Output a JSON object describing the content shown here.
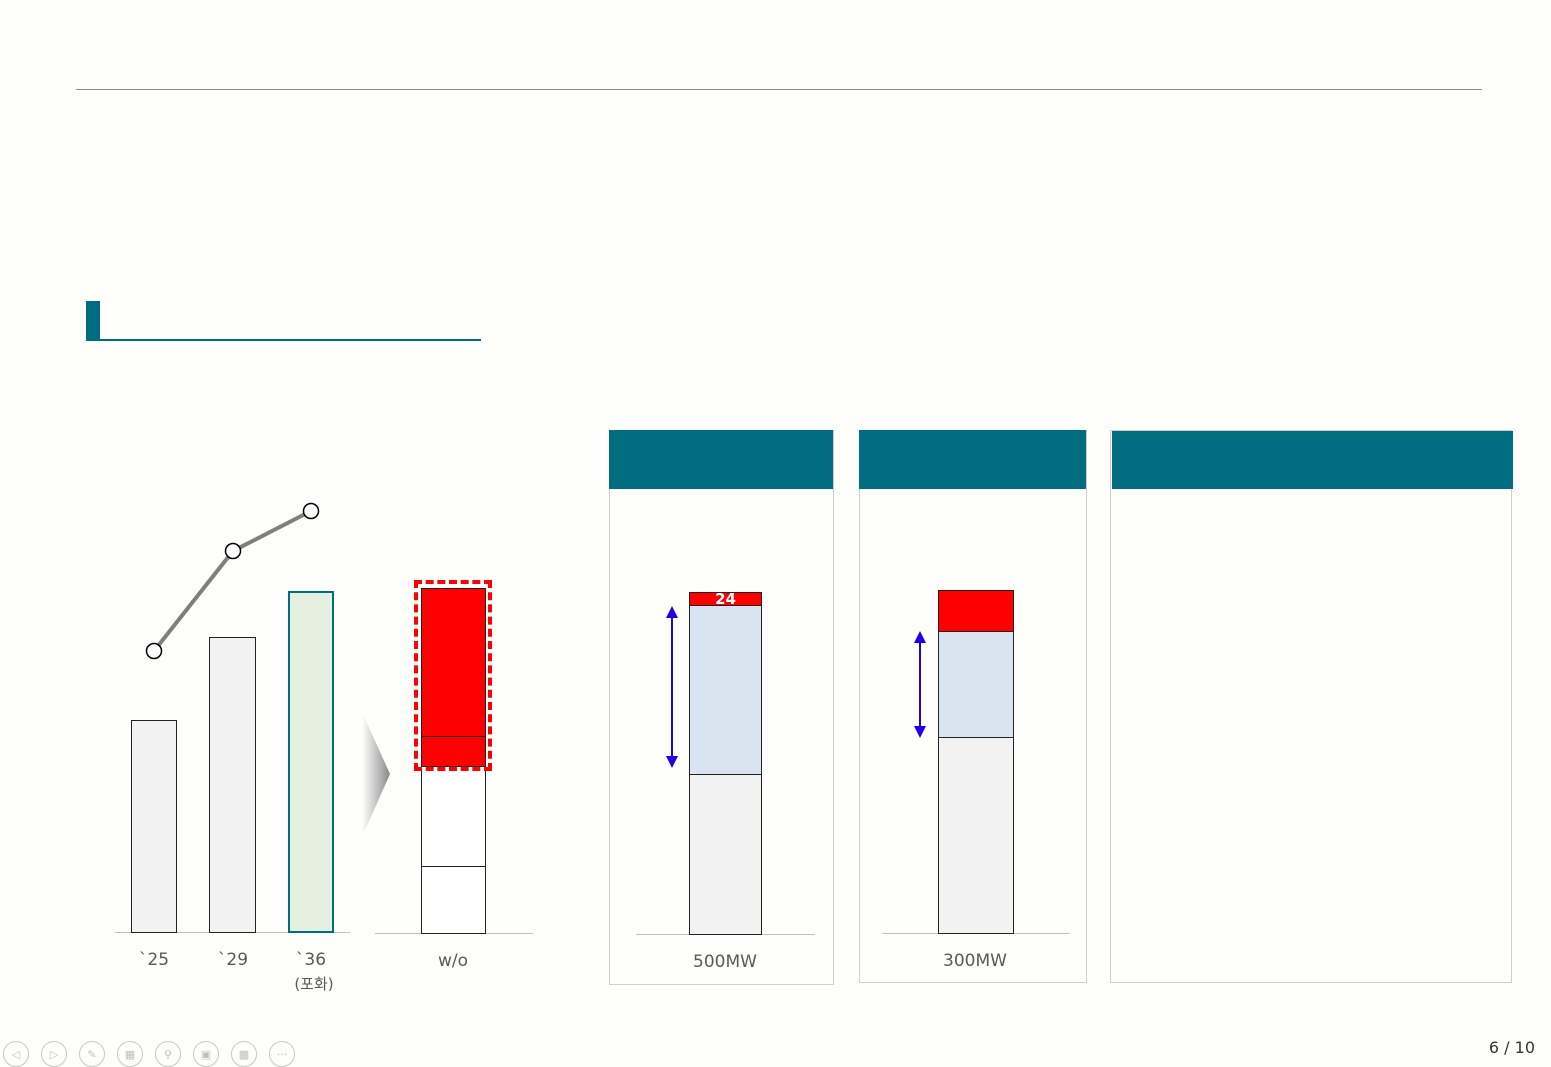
{
  "colors": {
    "teal": "#006c80",
    "red": "#ff0000",
    "light_blue": "#dae4f0",
    "light_gray": "#f2f2f2",
    "light_green": "#e3f0df",
    "arrow_blue": "#2200ee",
    "line_gray": "#7f7f7f"
  },
  "left_chart": {
    "categories": [
      "`25",
      "`29",
      "`36"
    ],
    "sub_label": "(포화)",
    "bar_values": [
      212,
      295,
      341
    ],
    "line_values": [
      280,
      380,
      420
    ]
  },
  "wo_chart": {
    "label": "w/o"
  },
  "panel1": {
    "label": "500MW",
    "top_value": "24"
  },
  "panel2": {
    "label": "300MW"
  },
  "footer": {
    "page": "6 / 10",
    "controls": [
      "prev-icon",
      "next-icon",
      "pen-icon",
      "slides-icon",
      "zoom-icon",
      "subtitle-icon",
      "camera-off-icon",
      "more-icon"
    ]
  },
  "chart_data": [
    {
      "type": "bar",
      "categories": [
        "`25",
        "`29",
        "`36"
      ],
      "values": [
        212,
        295,
        341
      ],
      "line_series_values": [
        280,
        380,
        420
      ]
    }
  ]
}
